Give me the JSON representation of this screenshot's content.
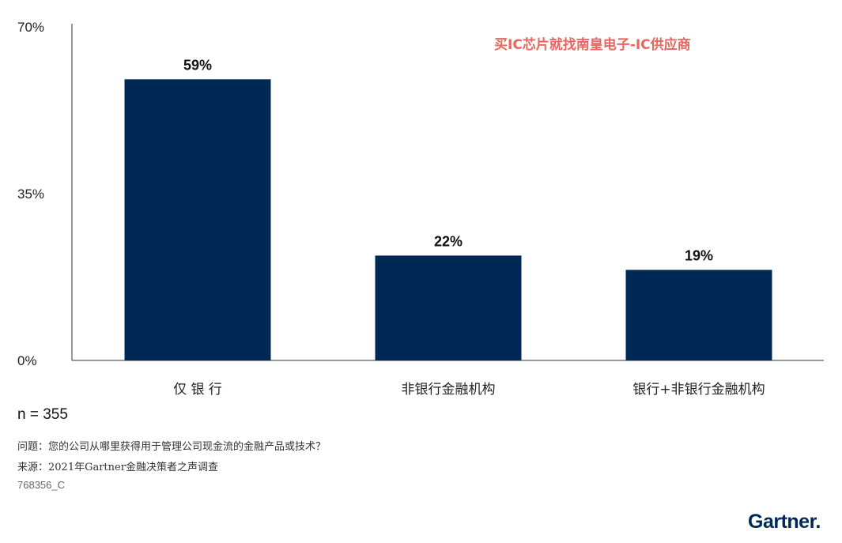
{
  "chart_data": {
    "type": "bar",
    "categories": [
      "仅 银 行",
      "非银行金融机构",
      "银行+非银行金融机构"
    ],
    "values": [
      59,
      22,
      19
    ],
    "value_labels": [
      "59%",
      "22%",
      "19%"
    ],
    "yticks": [
      0,
      35,
      70
    ],
    "ytick_labels": [
      "0%",
      "35%",
      "70%"
    ],
    "ylim": [
      0,
      70
    ],
    "grid": false,
    "bar_color": "#002856"
  },
  "watermark": "买IC芯片就找南皇电子-IC供应商",
  "sample_size": "n = 355",
  "question": "问题：您的公司从哪里获得用于管理公司现金流的金融产品或技术？",
  "source": "来源：2021年Gartner金融决策者之声调查",
  "figure_code": "768356_C",
  "logo": "Gartner."
}
